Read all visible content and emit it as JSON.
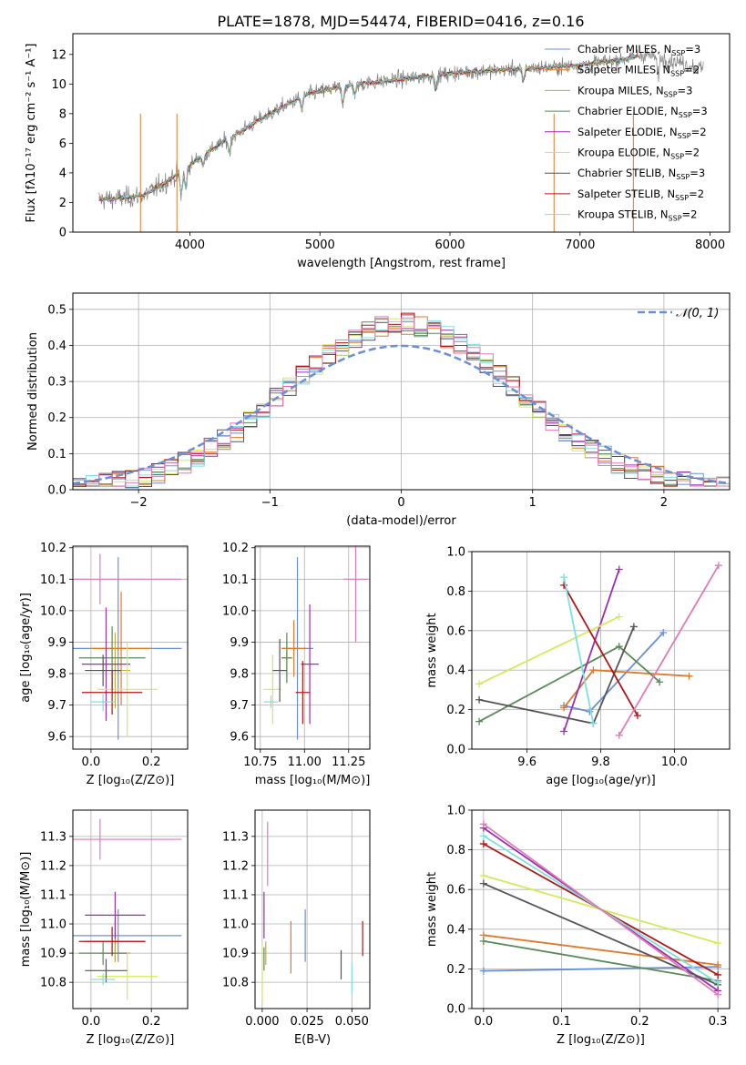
{
  "figure_title": "PLATE=1878, MJD=54474, FIBERID=0416, z=0.16",
  "colors": [
    "#6a8fd8",
    "#e07a2c",
    "#c7a63a",
    "#5a8a5a",
    "#9a2fb0",
    "#d4ea5a",
    "#555555",
    "#b01515",
    "#7ee0e0",
    "#e07ab8"
  ],
  "legend_entries": [
    {
      "label": "Chabrier MILES, N",
      "sub": "SSP",
      "suffix": "=3",
      "color": "#6a8fd8"
    },
    {
      "label": "Salpeter MILES, N",
      "sub": "SSP",
      "suffix": "=2",
      "color": "#e07a2c"
    },
    {
      "label": "Kroupa MILES, N",
      "sub": "SSP",
      "suffix": "=3",
      "color": "#c7a63a"
    },
    {
      "label": "Chabrier ELODIE, N",
      "sub": "SSP",
      "suffix": "=3",
      "color": "#5a8a5a"
    },
    {
      "label": "Salpeter ELODIE, N",
      "sub": "SSP",
      "suffix": "=2",
      "color": "#9a2fb0"
    },
    {
      "label": "Kroupa ELODIE, N",
      "sub": "SSP",
      "suffix": "=2",
      "color": "#d4ea5a"
    },
    {
      "label": "Chabrier STELIB, N",
      "sub": "SSP",
      "suffix": "=3",
      "color": "#555555"
    },
    {
      "label": "Salpeter STELIB, N",
      "sub": "SSP",
      "suffix": "=2",
      "color": "#b01515"
    },
    {
      "label": "Kroupa STELIB, N",
      "sub": "SSP",
      "suffix": "=2",
      "color": "#7ee0e0"
    }
  ],
  "chart_data": [
    {
      "id": "spectrum",
      "type": "line",
      "xlabel": "wavelength [Angstrom, rest frame]",
      "ylabel": "Flux [fλ10⁻¹⁷ erg cm⁻² s⁻¹ A⁻¹]",
      "xlim": [
        3100,
        8150
      ],
      "ylim": [
        0,
        13.4
      ],
      "xticks": [
        4000,
        5000,
        6000,
        7000,
        8000
      ],
      "yticks": [
        0,
        2,
        4,
        6,
        8,
        10,
        12
      ],
      "continuum": [
        [
          3300,
          2.2
        ],
        [
          3500,
          2.3
        ],
        [
          3650,
          2.5
        ],
        [
          3800,
          3.3
        ],
        [
          3950,
          4.2
        ],
        [
          4100,
          5.2
        ],
        [
          4300,
          6.3
        ],
        [
          4500,
          7.4
        ],
        [
          4700,
          8.4
        ],
        [
          4900,
          9.3
        ],
        [
          5100,
          9.7
        ],
        [
          5300,
          10.0
        ],
        [
          5500,
          10.2
        ],
        [
          5700,
          10.4
        ],
        [
          5900,
          10.6
        ],
        [
          6100,
          10.8
        ],
        [
          6300,
          10.9
        ],
        [
          6500,
          11.0
        ],
        [
          6700,
          11.1
        ],
        [
          6900,
          11.2
        ],
        [
          7100,
          11.4
        ],
        [
          7300,
          11.6
        ],
        [
          7500,
          12.0
        ],
        [
          7700,
          11.6
        ],
        [
          7950,
          11.0
        ]
      ]
    },
    {
      "id": "residuals",
      "type": "step",
      "xlabel": "(data-model)/error",
      "ylabel": "Normed distribution",
      "xlim": [
        -2.5,
        2.5
      ],
      "ylim": [
        0,
        0.545
      ],
      "xticks": [
        -2,
        -1,
        0,
        1,
        2
      ],
      "xticklabels": [
        "−2",
        "−1",
        "0",
        "1",
        "2"
      ],
      "yticks": [
        0.0,
        0.1,
        0.2,
        0.3,
        0.4,
        0.5
      ],
      "yticklabels": [
        "0.0",
        "0.1",
        "0.2",
        "0.3",
        "0.4",
        "0.5"
      ],
      "reference_label": "𝒩(0, 1)",
      "reference_color": "#6a8fd8"
    },
    {
      "id": "age_vs_Z",
      "type": "errorbar",
      "xlabel": "Z [log₁₀(Z/Z⊙)]",
      "ylabel": "age  [log₁₀(age/yr)]",
      "xlim": [
        -0.06,
        0.32
      ],
      "ylim": [
        9.56,
        10.205
      ],
      "xticks": [
        0.0,
        0.2
      ],
      "xticklabels": [
        "0.0",
        "0.2"
      ],
      "yticks": [
        9.6,
        9.7,
        9.8,
        9.9,
        10.0,
        10.1,
        10.2
      ],
      "yticklabels": [
        "9.6",
        "9.7",
        "9.8",
        "9.9",
        "10.0",
        "10.1",
        "10.2"
      ],
      "points": [
        {
          "x": 0.09,
          "xerr": 0.21,
          "y": 9.88,
          "yerr": 0.29,
          "c": 0
        },
        {
          "x": 0.1,
          "xerr": 0.1,
          "y": 9.88,
          "yerr": 0.18,
          "c": 1
        },
        {
          "x": 0.08,
          "xerr": 0.05,
          "y": 9.81,
          "yerr": 0.12,
          "c": 2
        },
        {
          "x": 0.07,
          "xerr": 0.11,
          "y": 9.85,
          "yerr": 0.1,
          "c": 3
        },
        {
          "x": 0.05,
          "xerr": 0.08,
          "y": 9.83,
          "yerr": 0.18,
          "c": 4
        },
        {
          "x": 0.12,
          "xerr": 0.1,
          "y": 9.75,
          "yerr": 0.15,
          "c": 5
        },
        {
          "x": 0.04,
          "xerr": 0.06,
          "y": 9.81,
          "yerr": 0.05,
          "c": 6
        },
        {
          "x": 0.07,
          "xerr": 0.1,
          "y": 9.74,
          "yerr": 0.07,
          "c": 7
        },
        {
          "x": 0.04,
          "xerr": 0.04,
          "y": 9.71,
          "yerr": 0.03,
          "c": 8
        },
        {
          "x": 0.03,
          "xerr": 0.27,
          "y": 10.1,
          "yerr": 0.08,
          "c": 9
        }
      ]
    },
    {
      "id": "age_vs_mass",
      "type": "errorbar",
      "xlabel": "mass [log₁₀(M/M⊙)]",
      "ylabel": "",
      "xlim": [
        10.72,
        11.37
      ],
      "ylim": [
        9.56,
        10.205
      ],
      "xticks": [
        10.75,
        11.0,
        11.25
      ],
      "xticklabels": [
        "10.75",
        "11.00",
        "11.25"
      ],
      "yticks": [
        9.6,
        9.7,
        9.8,
        9.9,
        10.0,
        10.1,
        10.2
      ],
      "yticklabels": [
        "9.6",
        "9.7",
        "9.8",
        "9.9",
        "10.0",
        "10.1",
        "10.2"
      ],
      "points": [
        {
          "x": 10.96,
          "xerr": 0.09,
          "y": 9.88,
          "yerr": 0.29,
          "c": 0
        },
        {
          "x": 10.94,
          "xerr": 0.07,
          "y": 9.88,
          "yerr": 0.09,
          "c": 1
        },
        {
          "x": 10.9,
          "xerr": 0.03,
          "y": 9.85,
          "yerr": 0.06,
          "c": 2
        },
        {
          "x": 10.9,
          "xerr": 0.03,
          "y": 9.85,
          "yerr": 0.08,
          "c": 3
        },
        {
          "x": 11.03,
          "xerr": 0.05,
          "y": 9.83,
          "yerr": 0.19,
          "c": 4
        },
        {
          "x": 10.82,
          "xerr": 0.05,
          "y": 9.75,
          "yerr": 0.11,
          "c": 5
        },
        {
          "x": 10.86,
          "xerr": 0.04,
          "y": 9.81,
          "yerr": 0.1,
          "c": 6
        },
        {
          "x": 10.99,
          "xerr": 0.04,
          "y": 9.74,
          "yerr": 0.1,
          "c": 7
        },
        {
          "x": 10.81,
          "xerr": 0.04,
          "y": 9.71,
          "yerr": 0.02,
          "c": 8
        },
        {
          "x": 11.29,
          "xerr": 0.07,
          "y": 10.1,
          "yerr": 0.2,
          "c": 9
        }
      ]
    },
    {
      "id": "massweight_vs_age",
      "type": "line",
      "xlabel": "age  [log₁₀(age/yr)]",
      "ylabel": "mass weight",
      "xlim": [
        9.45,
        10.15
      ],
      "ylim": [
        0,
        1.0
      ],
      "xticks": [
        9.6,
        9.8,
        10.0
      ],
      "xticklabels": [
        "9.6",
        "9.8",
        "10.0"
      ],
      "yticks": [
        0.0,
        0.2,
        0.4,
        0.6,
        0.8,
        1.0
      ],
      "yticklabels": [
        "0.0",
        "0.2",
        "0.4",
        "0.6",
        "0.8",
        "1.0"
      ],
      "lines": [
        {
          "c": 0,
          "pts": [
            [
              9.7,
              0.22
            ],
            [
              9.77,
              0.19
            ],
            [
              9.97,
              0.59
            ]
          ]
        },
        {
          "c": 1,
          "pts": [
            [
              9.7,
              0.21
            ],
            [
              9.78,
              0.4
            ],
            [
              10.04,
              0.37
            ]
          ]
        },
        {
          "c": 3,
          "pts": [
            [
              9.47,
              0.14
            ],
            [
              9.85,
              0.52
            ],
            [
              9.96,
              0.34
            ]
          ]
        },
        {
          "c": 4,
          "pts": [
            [
              9.7,
              0.09
            ],
            [
              9.85,
              0.91
            ]
          ]
        },
        {
          "c": 5,
          "pts": [
            [
              9.47,
              0.33
            ],
            [
              9.85,
              0.67
            ]
          ]
        },
        {
          "c": 6,
          "pts": [
            [
              9.47,
              0.25
            ],
            [
              9.78,
              0.13
            ],
            [
              9.89,
              0.62
            ]
          ]
        },
        {
          "c": 7,
          "pts": [
            [
              9.7,
              0.83
            ],
            [
              9.9,
              0.17
            ]
          ]
        },
        {
          "c": 8,
          "pts": [
            [
              9.7,
              0.87
            ],
            [
              9.78,
              0.13
            ]
          ]
        },
        {
          "c": 9,
          "pts": [
            [
              9.85,
              0.07
            ],
            [
              10.12,
              0.93
            ]
          ]
        }
      ]
    },
    {
      "id": "mass_vs_Z",
      "type": "errorbar",
      "xlabel": "Z [log₁₀(Z/Z⊙)]",
      "ylabel": "mass [log₁₀(M/M⊙)]",
      "xlim": [
        -0.06,
        0.32
      ],
      "ylim": [
        10.71,
        11.39
      ],
      "xticks": [
        0.0,
        0.2
      ],
      "xticklabels": [
        "0.0",
        "0.2"
      ],
      "yticks": [
        10.8,
        10.9,
        11.0,
        11.1,
        11.2,
        11.3
      ],
      "yticklabels": [
        "10.8",
        "10.9",
        "11.0",
        "11.1",
        "11.2",
        "11.3"
      ],
      "points": [
        {
          "x": 0.09,
          "xerr": 0.21,
          "y": 10.96,
          "yerr": 0.09,
          "c": 0
        },
        {
          "x": 0.08,
          "xerr": 0.1,
          "y": 10.94,
          "yerr": 0.07,
          "c": 1
        },
        {
          "x": 0.08,
          "xerr": 0.05,
          "y": 10.9,
          "yerr": 0.03,
          "c": 2
        },
        {
          "x": 0.04,
          "xerr": 0.08,
          "y": 10.9,
          "yerr": 0.04,
          "c": 3
        },
        {
          "x": 0.08,
          "xerr": 0.1,
          "y": 11.03,
          "yerr": 0.08,
          "c": 4
        },
        {
          "x": 0.12,
          "xerr": 0.1,
          "y": 10.82,
          "yerr": 0.08,
          "c": 5
        },
        {
          "x": 0.05,
          "xerr": 0.07,
          "y": 10.84,
          "yerr": 0.04,
          "c": 6
        },
        {
          "x": 0.07,
          "xerr": 0.11,
          "y": 10.94,
          "yerr": 0.05,
          "c": 7
        },
        {
          "x": 0.04,
          "xerr": 0.04,
          "y": 10.81,
          "yerr": 0.02,
          "c": 8
        },
        {
          "x": 0.03,
          "xerr": 0.27,
          "y": 11.29,
          "yerr": 0.07,
          "c": 9
        }
      ]
    },
    {
      "id": "mass_vs_ebv",
      "type": "errorbar",
      "xlabel": "E(B-V)",
      "ylabel": "",
      "xlim": [
        -0.004,
        0.06
      ],
      "ylim": [
        10.71,
        11.39
      ],
      "xticks": [
        0.0,
        0.025,
        0.05
      ],
      "xticklabels": [
        "0.000",
        "0.025",
        "0.050"
      ],
      "yticks": [
        10.8,
        10.9,
        11.0,
        11.1,
        11.2,
        11.3
      ],
      "yticklabels": [
        "10.8",
        "10.9",
        "11.0",
        "11.1",
        "11.2",
        "11.3"
      ],
      "points": [
        {
          "x": 0.024,
          "xerr": 0,
          "y": 10.96,
          "yerr": 0.09,
          "c": 0
        },
        {
          "x": 0.016,
          "xerr": 0,
          "y": 10.92,
          "yerr": 0.09,
          "c": 1
        },
        {
          "x": 0.002,
          "xerr": 0,
          "y": 10.9,
          "yerr": 0.04,
          "c": 2
        },
        {
          "x": 0.001,
          "xerr": 0,
          "y": 10.88,
          "yerr": 0.04,
          "c": 3
        },
        {
          "x": 0.001,
          "xerr": 0,
          "y": 11.03,
          "yerr": 0.08,
          "c": 4
        },
        {
          "x": 0.0,
          "xerr": 0,
          "y": 10.83,
          "yerr": 0.1,
          "c": 5
        },
        {
          "x": 0.044,
          "xerr": 0,
          "y": 10.86,
          "yerr": 0.05,
          "c": 6
        },
        {
          "x": 0.056,
          "xerr": 0,
          "y": 10.95,
          "yerr": 0.06,
          "c": 7
        },
        {
          "x": 0.05,
          "xerr": 0,
          "y": 10.81,
          "yerr": 0.05,
          "c": 8
        },
        {
          "x": 0.003,
          "xerr": 0,
          "y": 11.24,
          "yerr": 0.11,
          "c": 9
        }
      ]
    },
    {
      "id": "massweight_vs_Z",
      "type": "line",
      "xlabel": "Z [log₁₀(Z/Z⊙)]",
      "ylabel": "mass weight",
      "xlim": [
        -0.015,
        0.315
      ],
      "ylim": [
        0,
        1.0
      ],
      "xticks": [
        0.0,
        0.1,
        0.2,
        0.3
      ],
      "xticklabels": [
        "0.0",
        "0.1",
        "0.2",
        "0.3"
      ],
      "yticks": [
        0.0,
        0.2,
        0.4,
        0.6,
        0.8,
        1.0
      ],
      "yticklabels": [
        "0.0",
        "0.2",
        "0.4",
        "0.6",
        "0.8",
        "1.0"
      ],
      "lines": [
        {
          "c": 0,
          "pts": [
            [
              0.0,
              0.19
            ],
            [
              0.3,
              0.21
            ]
          ]
        },
        {
          "c": 1,
          "pts": [
            [
              0.0,
              0.37
            ],
            [
              0.3,
              0.22
            ]
          ]
        },
        {
          "c": 3,
          "pts": [
            [
              0.0,
              0.34
            ],
            [
              0.3,
              0.14
            ]
          ]
        },
        {
          "c": 4,
          "pts": [
            [
              0.0,
              0.91
            ],
            [
              0.3,
              0.09
            ]
          ]
        },
        {
          "c": 5,
          "pts": [
            [
              0.0,
              0.67
            ],
            [
              0.3,
              0.33
            ]
          ]
        },
        {
          "c": 6,
          "pts": [
            [
              0.0,
              0.63
            ],
            [
              0.3,
              0.12
            ]
          ]
        },
        {
          "c": 7,
          "pts": [
            [
              0.0,
              0.83
            ],
            [
              0.3,
              0.17
            ]
          ]
        },
        {
          "c": 8,
          "pts": [
            [
              0.0,
              0.87
            ],
            [
              0.3,
              0.13
            ]
          ]
        },
        {
          "c": 9,
          "pts": [
            [
              0.0,
              0.93
            ],
            [
              0.3,
              0.07
            ]
          ]
        }
      ]
    }
  ]
}
